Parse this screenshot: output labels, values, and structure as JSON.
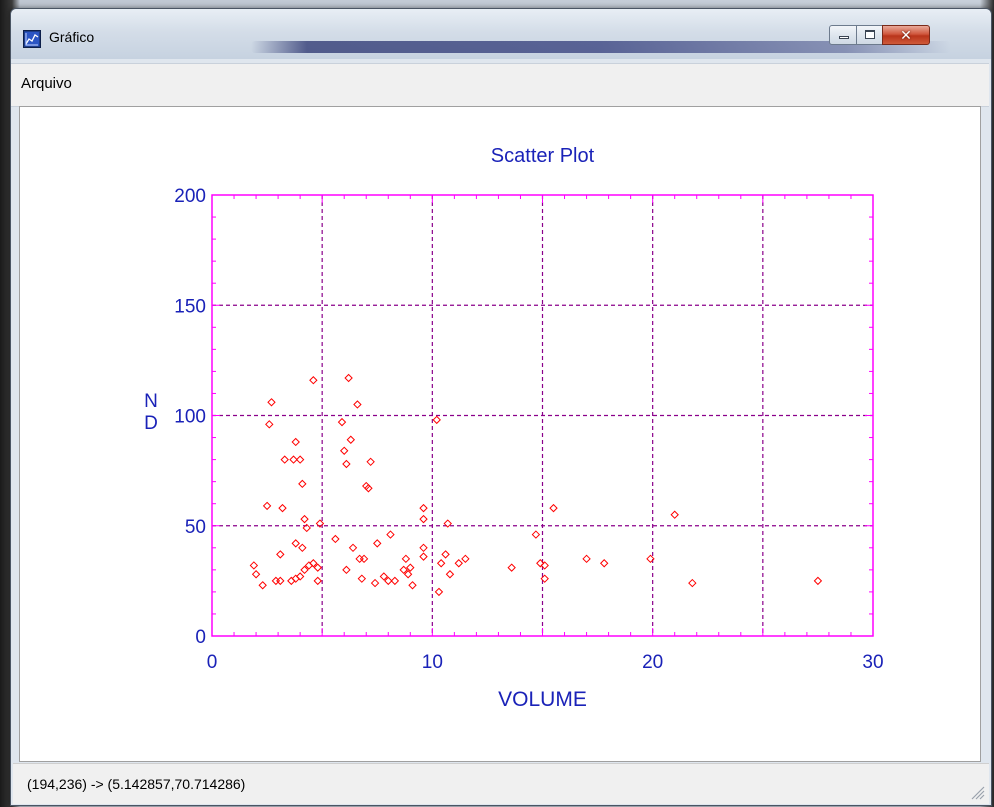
{
  "window": {
    "title": "Gráfico"
  },
  "menu": {
    "items": [
      {
        "label": "Arquivo"
      }
    ]
  },
  "status_bar": {
    "text": "(194,236) -> (5.142857,70.714286)"
  },
  "colors": {
    "title_and_axes_text": "#1a22b8",
    "frame": "#ff00ff",
    "grid": "#8b008b",
    "points": "#ff0000"
  },
  "chart_data": {
    "type": "scatter",
    "title": "Scatter Plot",
    "xlabel": "VOLUME",
    "ylabel": "N\nD",
    "xlim": [
      0,
      30
    ],
    "ylim": [
      0,
      200
    ],
    "x_ticks": [
      0,
      10,
      20,
      30
    ],
    "y_ticks": [
      0,
      50,
      100,
      150,
      200
    ],
    "x_grid": [
      5,
      10,
      15,
      20,
      25
    ],
    "y_grid": [
      50,
      100,
      150
    ],
    "marker": "diamond",
    "grid": true,
    "points": [
      [
        1.9,
        32
      ],
      [
        2.0,
        28
      ],
      [
        2.3,
        23
      ],
      [
        2.5,
        59
      ],
      [
        2.6,
        96
      ],
      [
        2.7,
        106
      ],
      [
        2.9,
        25
      ],
      [
        3.1,
        25
      ],
      [
        3.1,
        37
      ],
      [
        3.2,
        58
      ],
      [
        3.3,
        80
      ],
      [
        3.6,
        25
      ],
      [
        3.7,
        80
      ],
      [
        3.8,
        26
      ],
      [
        3.8,
        42
      ],
      [
        3.8,
        88
      ],
      [
        4.0,
        27
      ],
      [
        4.0,
        80
      ],
      [
        4.1,
        40
      ],
      [
        4.1,
        69
      ],
      [
        4.2,
        30
      ],
      [
        4.2,
        53
      ],
      [
        4.3,
        49
      ],
      [
        4.4,
        32
      ],
      [
        4.6,
        116
      ],
      [
        4.6,
        33
      ],
      [
        4.8,
        31
      ],
      [
        4.8,
        25
      ],
      [
        4.9,
        51
      ],
      [
        5.6,
        44
      ],
      [
        5.9,
        97
      ],
      [
        6.0,
        84
      ],
      [
        6.1,
        30
      ],
      [
        6.1,
        78
      ],
      [
        6.2,
        117
      ],
      [
        6.3,
        89
      ],
      [
        6.4,
        40
      ],
      [
        6.6,
        105
      ],
      [
        6.7,
        35
      ],
      [
        6.8,
        26
      ],
      [
        6.9,
        35
      ],
      [
        7.0,
        68
      ],
      [
        7.1,
        67
      ],
      [
        7.2,
        79
      ],
      [
        7.4,
        24
      ],
      [
        7.5,
        42
      ],
      [
        7.8,
        27
      ],
      [
        8.0,
        25
      ],
      [
        8.1,
        46
      ],
      [
        8.3,
        25
      ],
      [
        8.7,
        30
      ],
      [
        8.8,
        35
      ],
      [
        8.9,
        28
      ],
      [
        9.0,
        31
      ],
      [
        9.1,
        23
      ],
      [
        9.6,
        58
      ],
      [
        9.6,
        53
      ],
      [
        9.6,
        40
      ],
      [
        9.6,
        36
      ],
      [
        10.2,
        98
      ],
      [
        10.3,
        20
      ],
      [
        10.4,
        33
      ],
      [
        10.6,
        37
      ],
      [
        10.7,
        51
      ],
      [
        10.8,
        28
      ],
      [
        11.2,
        33
      ],
      [
        11.5,
        35
      ],
      [
        13.6,
        31
      ],
      [
        14.7,
        46
      ],
      [
        14.9,
        33
      ],
      [
        15.1,
        32
      ],
      [
        15.1,
        26
      ],
      [
        15.5,
        58
      ],
      [
        17.0,
        35
      ],
      [
        17.8,
        33
      ],
      [
        19.9,
        35
      ],
      [
        21.0,
        55
      ],
      [
        21.8,
        24
      ],
      [
        27.5,
        25
      ]
    ]
  }
}
